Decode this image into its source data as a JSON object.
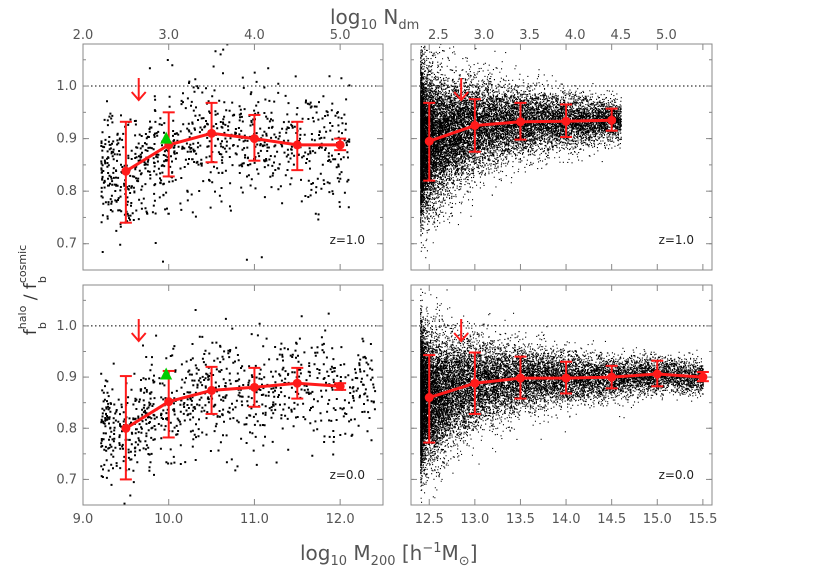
{
  "chart_data": [
    {
      "type": "scatter",
      "panel": "top-left",
      "annotation": "z=1.0",
      "x_range": [
        9.0,
        12.5
      ],
      "ylim": [
        0.65,
        1.08
      ],
      "reference_line_y": 1.0,
      "arrow_x": 9.65,
      "scatter_x_range": [
        9.2,
        12.1
      ],
      "highlight_point": {
        "x": 9.97,
        "y": 0.9,
        "color": "#00cc00"
      },
      "series": [
        {
          "name": "",
          "x": [
            9.5,
            10.0,
            10.5,
            11.0,
            11.5,
            12.0
          ],
          "y": [
            0.838,
            0.888,
            0.91,
            0.9,
            0.888,
            0.888
          ],
          "err_low": [
            0.74,
            0.828,
            0.855,
            0.858,
            0.84,
            0.878
          ],
          "err_high": [
            0.932,
            0.95,
            0.968,
            0.945,
            0.932,
            0.9
          ]
        }
      ]
    },
    {
      "type": "scatter",
      "panel": "top-right",
      "annotation": "z=1.0",
      "x_range": [
        12.3,
        15.6
      ],
      "ylim": [
        0.65,
        1.08
      ],
      "reference_line_y": 1.0,
      "arrow_x": 12.85,
      "scatter_x_range": [
        12.4,
        14.6
      ],
      "series": [
        {
          "name": "",
          "x": [
            12.5,
            13.0,
            13.5,
            14.0,
            14.5
          ],
          "y": [
            0.895,
            0.925,
            0.932,
            0.933,
            0.935
          ],
          "err_low": [
            0.82,
            0.875,
            0.898,
            0.903,
            0.915
          ],
          "err_high": [
            0.968,
            0.975,
            0.968,
            0.965,
            0.957
          ]
        }
      ]
    },
    {
      "type": "scatter",
      "panel": "bottom-left",
      "annotation": "z=0.0",
      "x_range": [
        9.0,
        12.5
      ],
      "ylim": [
        0.65,
        1.08
      ],
      "reference_line_y": 1.0,
      "arrow_x": 9.65,
      "scatter_x_range": [
        9.2,
        12.4
      ],
      "highlight_point": {
        "x": 9.97,
        "y": 0.905,
        "color": "#00cc00"
      },
      "series": [
        {
          "name": "",
          "x": [
            9.5,
            10.0,
            10.5,
            11.0,
            11.5,
            12.0
          ],
          "y": [
            0.8,
            0.852,
            0.874,
            0.88,
            0.888,
            0.882
          ],
          "err_low": [
            0.7,
            0.782,
            0.828,
            0.842,
            0.858,
            0.875
          ],
          "err_high": [
            0.902,
            0.912,
            0.92,
            0.918,
            0.918,
            0.888
          ]
        }
      ]
    },
    {
      "type": "scatter",
      "panel": "bottom-right",
      "annotation": "z=0.0",
      "x_range": [
        12.3,
        15.6
      ],
      "ylim": [
        0.65,
        1.08
      ],
      "reference_line_y": 1.0,
      "arrow_x": 12.85,
      "scatter_x_range": [
        12.4,
        15.5
      ],
      "series": [
        {
          "name": "",
          "x": [
            12.5,
            13.0,
            13.5,
            14.0,
            14.5,
            15.0,
            15.5
          ],
          "y": [
            0.86,
            0.888,
            0.898,
            0.898,
            0.9,
            0.906,
            0.9
          ],
          "err_low": [
            0.772,
            0.828,
            0.858,
            0.868,
            0.878,
            0.882,
            0.892
          ],
          "err_high": [
            0.943,
            0.948,
            0.94,
            0.93,
            0.922,
            0.932,
            0.91
          ]
        }
      ]
    }
  ],
  "axes": {
    "bottom_left_ticks": [
      "9.0",
      "10.0",
      "11.0",
      "12.0"
    ],
    "bottom_left_tick_values": [
      9.0,
      10.0,
      11.0,
      12.0
    ],
    "bottom_right_ticks": [
      "12.5",
      "13.0",
      "13.5",
      "14.0",
      "14.5",
      "15.0",
      "15.5"
    ],
    "bottom_right_tick_values": [
      12.5,
      13.0,
      13.5,
      14.0,
      14.5,
      15.0,
      15.5
    ],
    "top_left_ticks": [
      "2.0",
      "3.0",
      "4.0",
      "5.0"
    ],
    "top_left_tick_values": [
      2.0,
      3.0,
      4.0,
      5.0
    ],
    "top_right_ticks": [
      "2.5",
      "3.0",
      "3.5",
      "4.0",
      "4.5",
      "5.0"
    ],
    "top_right_tick_values": [
      2.5,
      3.0,
      3.5,
      4.0,
      4.5,
      5.0
    ],
    "y_ticks": [
      "0.7",
      "0.8",
      "0.9",
      "1.0"
    ],
    "y_tick_values": [
      0.7,
      0.8,
      0.9,
      1.0
    ],
    "top_axis_label": {
      "base": "log",
      "sub": "10",
      "mid": " N",
      "sub2": "dm"
    },
    "bottom_axis_label": {
      "base": "log",
      "sub": "10",
      "mid": " M",
      "sub2": "200",
      "bracket": " [h",
      "sup": "−1",
      "tail": "M",
      "sub3": "⊙",
      "close": "]"
    },
    "y_axis_label": {
      "f1": "f",
      "sup1": "halo",
      "sub1": "b",
      "slash": " / ",
      "f2": "f",
      "sup2": "cosmic",
      "sub2": "b"
    }
  },
  "colors": {
    "series": "#ff1a1a",
    "scatter": "#000000",
    "highlight": "#00cc00",
    "axis": "#888888"
  }
}
